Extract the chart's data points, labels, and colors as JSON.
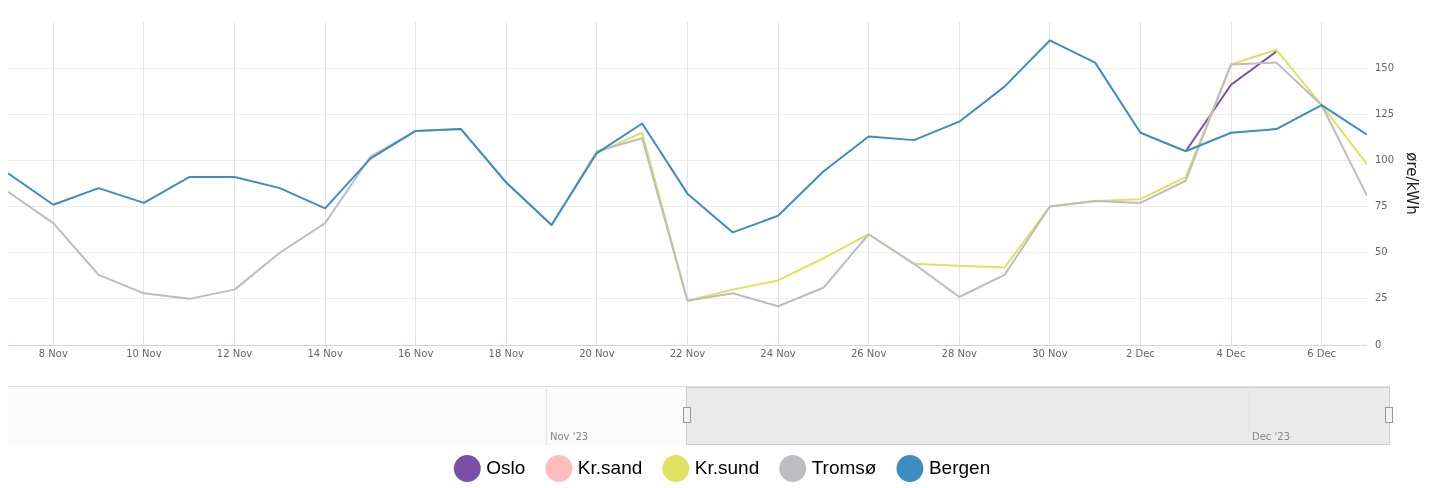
{
  "chart_data": {
    "type": "line",
    "ylabel": "øre/kWh",
    "x": [
      "2023-11-07",
      "2023-11-08",
      "2023-11-09",
      "2023-11-10",
      "2023-11-11",
      "2023-11-12",
      "2023-11-13",
      "2023-11-14",
      "2023-11-15",
      "2023-11-16",
      "2023-11-17",
      "2023-11-18",
      "2023-11-19",
      "2023-11-20",
      "2023-11-21",
      "2023-11-22",
      "2023-11-23",
      "2023-11-24",
      "2023-11-25",
      "2023-11-26",
      "2023-11-27",
      "2023-11-28",
      "2023-11-29",
      "2023-11-30",
      "2023-12-01",
      "2023-12-02",
      "2023-12-03",
      "2023-12-04",
      "2023-12-05",
      "2023-12-06",
      "2023-12-07"
    ],
    "series": [
      {
        "name": "Oslo",
        "color": "#7b4fa8",
        "values": [
          null,
          null,
          null,
          null,
          null,
          null,
          null,
          null,
          null,
          null,
          null,
          null,
          null,
          null,
          null,
          null,
          null,
          null,
          null,
          null,
          null,
          null,
          null,
          null,
          null,
          null,
          105,
          141,
          159,
          null,
          null
        ]
      },
      {
        "name": "Kr.sand",
        "color": "#ffbcbc",
        "values": [
          null,
          null,
          null,
          null,
          null,
          null,
          null,
          null,
          null,
          null,
          null,
          null,
          null,
          null,
          null,
          null,
          null,
          null,
          null,
          null,
          null,
          null,
          null,
          null,
          null,
          null,
          null,
          null,
          null,
          null,
          null
        ]
      },
      {
        "name": "Kr.sund",
        "color": "#dfe25e",
        "values": [
          null,
          null,
          null,
          null,
          null,
          null,
          null,
          null,
          null,
          null,
          null,
          null,
          null,
          104,
          115,
          24,
          30,
          35,
          47,
          60,
          44,
          43,
          42,
          75,
          78,
          79,
          91,
          152,
          160,
          130,
          98
        ]
      },
      {
        "name": "Tromsø",
        "color": "#bdbcc0",
        "values": [
          83,
          66,
          38,
          28,
          25,
          30,
          50,
          66,
          102,
          116,
          117,
          88,
          65,
          105,
          112,
          24,
          28,
          21,
          31,
          60,
          44,
          26,
          38,
          75,
          78,
          77,
          89,
          152,
          153,
          130,
          81
        ]
      },
      {
        "name": "Bergen",
        "color": "#3f8dc0",
        "values": [
          93,
          76,
          85,
          77,
          91,
          91,
          85,
          74,
          101,
          116,
          117,
          88,
          65,
          104,
          120,
          82,
          61,
          70,
          94,
          113,
          111,
          121,
          140,
          165,
          153,
          115,
          105,
          115,
          117,
          130,
          114
        ]
      }
    ],
    "xlim": [
      "2023-11-07",
      "2023-12-07"
    ],
    "xticks": [
      {
        "value": "2023-11-08",
        "label": "8 Nov"
      },
      {
        "value": "2023-11-10",
        "label": "10 Nov"
      },
      {
        "value": "2023-11-12",
        "label": "12 Nov"
      },
      {
        "value": "2023-11-14",
        "label": "14 Nov"
      },
      {
        "value": "2023-11-16",
        "label": "16 Nov"
      },
      {
        "value": "2023-11-18",
        "label": "18 Nov"
      },
      {
        "value": "2023-11-20",
        "label": "20 Nov"
      },
      {
        "value": "2023-11-22",
        "label": "22 Nov"
      },
      {
        "value": "2023-11-24",
        "label": "24 Nov"
      },
      {
        "value": "2023-11-26",
        "label": "26 Nov"
      },
      {
        "value": "2023-11-28",
        "label": "28 Nov"
      },
      {
        "value": "2023-11-30",
        "label": "30 Nov"
      },
      {
        "value": "2023-12-02",
        "label": "2 Dec"
      },
      {
        "value": "2023-12-04",
        "label": "4 Dec"
      },
      {
        "value": "2023-12-06",
        "label": "6 Dec"
      }
    ],
    "ylim": [
      0,
      175
    ],
    "yticks": [
      0,
      25,
      50,
      75,
      100,
      125,
      150
    ],
    "grid": true,
    "legend": "bottom",
    "marker": "none",
    "line_style": "solid",
    "annotations": [
      "Nov '23",
      "Dec '23"
    ]
  }
}
